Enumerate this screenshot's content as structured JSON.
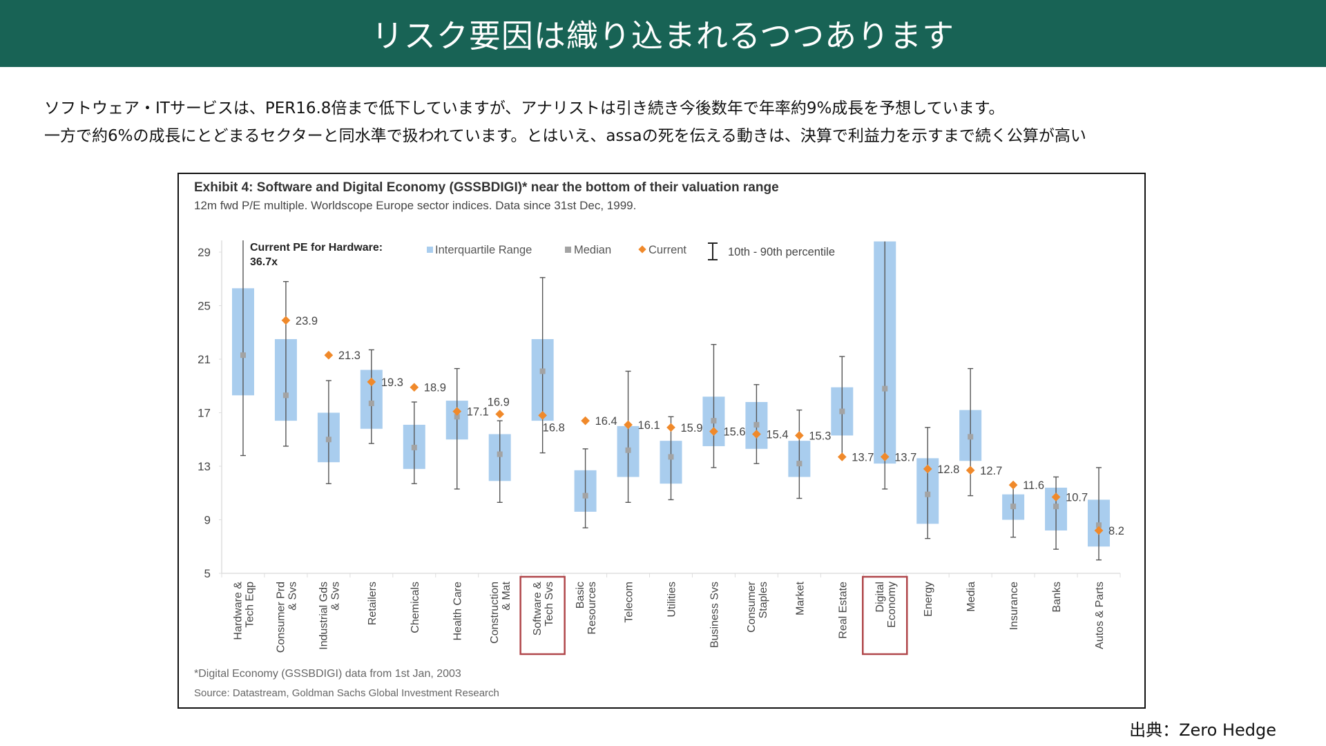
{
  "header": {
    "title": "リスク要因は織り込まれるつつあります"
  },
  "lead": {
    "line1": "ソフトウェア・ITサービスは、PER16.8倍まで低下していますが、アナリストは引き続き今後数年で年率約9%成長を予想しています。",
    "line2": "一方で約6%の成長にとどまるセクターと同水準で扱われています。とはいえ、assaの死を伝える動きは、決算で利益力を示すまで続く公算が高い"
  },
  "credit": "出典：Zero Hedge",
  "colors": {
    "header_bg": "#186355",
    "iqr": "#a9cdee",
    "median": "#a3a3a3",
    "current": "#f0892a",
    "whisker": "#555555",
    "highlight": "#b0464a"
  },
  "chart_data": {
    "type": "box",
    "title": "Exhibit 4: Software and Digital Economy (GSSBDIGI)* near the bottom of their valuation range",
    "subtitle": "12m fwd P/E multiple. Worldscope Europe sector indices. Data since 31st Dec, 1999.",
    "xlabel": "",
    "ylabel": "",
    "ylim": [
      5,
      29
    ],
    "yticks": [
      5,
      9,
      13,
      17,
      21,
      25,
      29
    ],
    "grid": false,
    "legend_position": "top",
    "legend": {
      "iqr": "Interquartile Range",
      "median": "Median",
      "current": "Current",
      "whisker": "10th - 90th percentile"
    },
    "annotation": {
      "line1": "Current PE for Hardware:",
      "line2": "36.7x"
    },
    "footnote": "*Digital Economy (GSSBDIGI) data from 1st Jan, 2003",
    "source": "Source: Datastream, Goldman Sachs Global Investment Research",
    "highlighted": [
      "Software & Tech Svs",
      "Digital Economy"
    ],
    "categories": [
      "Hardware & Tech Eqp",
      "Consumer Prd & Svs",
      "Industrial Gds & Svs",
      "Retailers",
      "Chemicals",
      "Health Care",
      "Construction & Mat",
      "Software & Tech Svs",
      "Basic Resources",
      "Telecom",
      "Utilities",
      "Business Svs",
      "Consumer Staples",
      "Market",
      "Real Estate",
      "Digital Economy",
      "Energy",
      "Media",
      "Insurance",
      "Banks",
      "Autos & Parts"
    ],
    "category_lines": [
      [
        "Hardware &",
        "Tech Eqp"
      ],
      [
        "Consumer Prd",
        "& Svs"
      ],
      [
        "Industrial Gds",
        "& Svs"
      ],
      [
        "Retailers"
      ],
      [
        "Chemicals"
      ],
      [
        "Health Care"
      ],
      [
        "Construction",
        "& Mat"
      ],
      [
        "Software &",
        "Tech Svs"
      ],
      [
        "Basic",
        "Resources"
      ],
      [
        "Telecom"
      ],
      [
        "Utilities"
      ],
      [
        "Business Svs"
      ],
      [
        "Consumer",
        "Staples"
      ],
      [
        "Market"
      ],
      [
        "Real Estate"
      ],
      [
        "Digital",
        "Economy"
      ],
      [
        "Energy"
      ],
      [
        "Media"
      ],
      [
        "Insurance"
      ],
      [
        "Banks"
      ],
      [
        "Autos & Parts"
      ]
    ],
    "series": [
      {
        "name": "p10",
        "values": [
          13.8,
          14.5,
          11.7,
          14.7,
          11.7,
          11.3,
          10.3,
          14.0,
          8.4,
          10.3,
          10.5,
          12.9,
          13.2,
          10.6,
          13.7,
          11.3,
          7.6,
          10.8,
          7.7,
          6.8,
          6.0
        ]
      },
      {
        "name": "q1",
        "values": [
          18.3,
          16.4,
          13.3,
          15.8,
          12.8,
          15.0,
          11.9,
          16.4,
          9.6,
          12.2,
          11.7,
          14.5,
          14.3,
          12.2,
          15.3,
          13.2,
          8.7,
          13.4,
          9.0,
          8.2,
          7.0
        ]
      },
      {
        "name": "median",
        "values": [
          21.3,
          18.3,
          15.0,
          17.7,
          14.4,
          16.7,
          13.9,
          20.1,
          10.8,
          14.2,
          13.7,
          16.4,
          16.1,
          13.2,
          17.1,
          18.8,
          10.9,
          15.2,
          10.0,
          10.0,
          8.6
        ]
      },
      {
        "name": "q3",
        "values": [
          26.3,
          22.5,
          17.0,
          20.2,
          16.1,
          17.9,
          15.4,
          22.5,
          12.7,
          16.0,
          14.9,
          18.2,
          17.8,
          14.9,
          18.9,
          29.8,
          13.6,
          17.2,
          10.9,
          11.4,
          10.5
        ]
      },
      {
        "name": "p90",
        "values": [
          36.7,
          26.8,
          19.4,
          21.7,
          17.8,
          20.3,
          16.4,
          27.1,
          14.3,
          20.1,
          16.7,
          22.1,
          19.1,
          17.2,
          21.2,
          29.8,
          15.9,
          20.3,
          11.6,
          12.2,
          12.9
        ]
      },
      {
        "name": "Current",
        "values": [
          36.7,
          23.9,
          21.3,
          19.3,
          18.9,
          17.1,
          16.9,
          16.8,
          16.4,
          16.1,
          15.9,
          15.6,
          15.4,
          15.3,
          13.7,
          13.7,
          12.8,
          12.7,
          11.6,
          10.7,
          8.2
        ]
      }
    ],
    "current_labels": [
      "",
      "23.9",
      "21.3",
      "19.3",
      "18.9",
      "17.1",
      "16.9",
      "16.8",
      "16.4",
      "16.1",
      "15.9",
      "15.6",
      "15.4",
      "15.3",
      "13.7",
      "13.7",
      "12.8",
      "12.7",
      "11.6",
      "10.7",
      "8.2"
    ]
  }
}
